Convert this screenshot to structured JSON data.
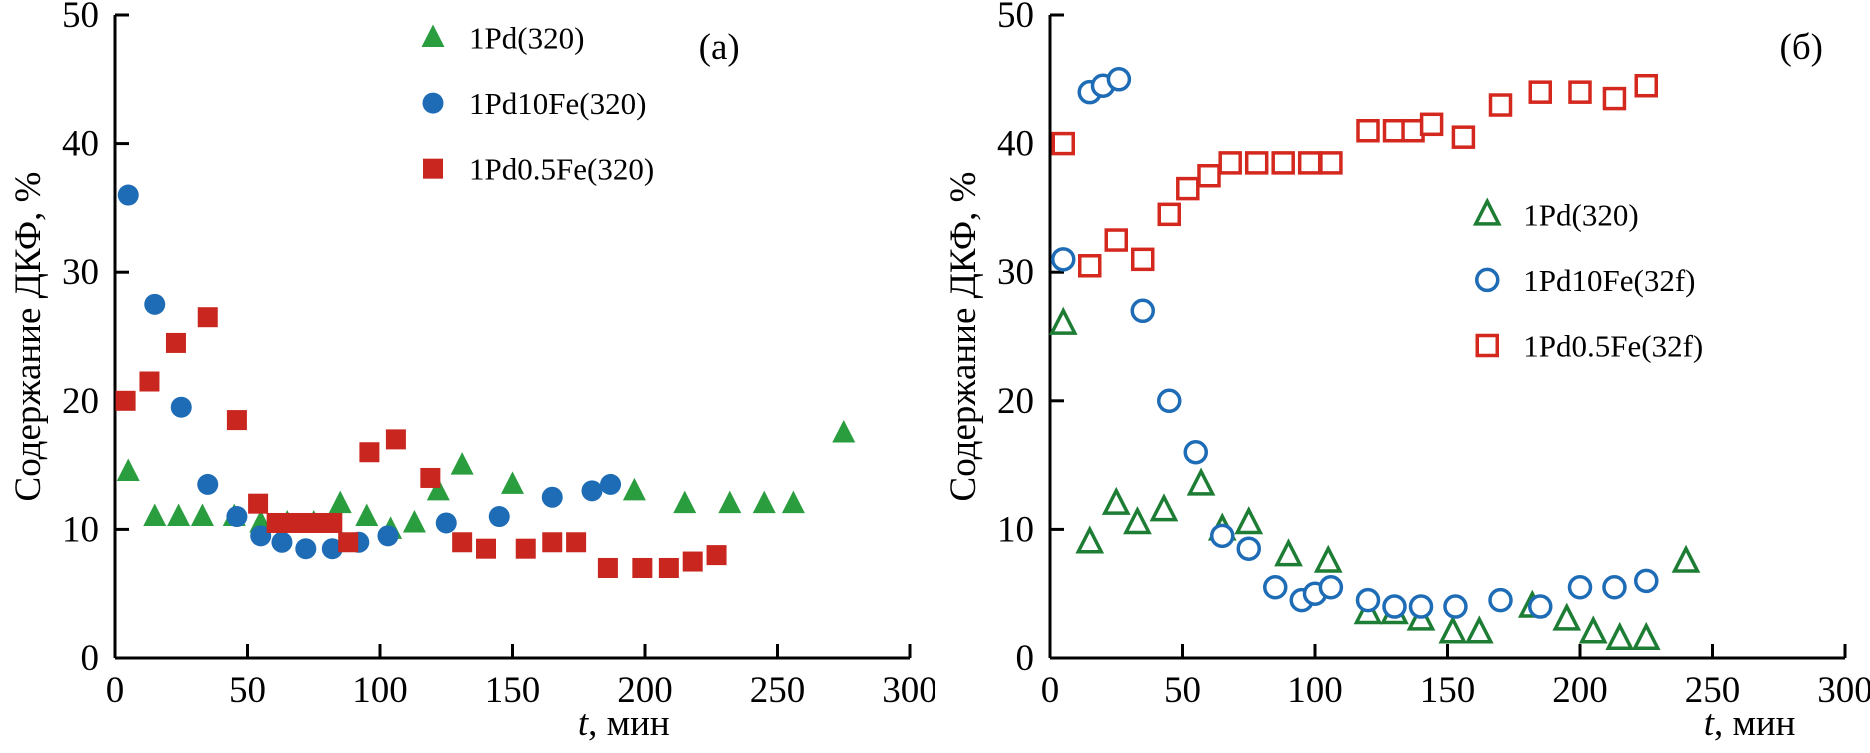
{
  "figure": {
    "background": "#ffffff",
    "axis_color": "#000000"
  },
  "chart_data": [
    {
      "type": "scatter",
      "panel_label": "(а)",
      "panel_label_fx": 0.76,
      "panel_label_fy": 0.05,
      "title": "",
      "xlabel_parts": [
        {
          "text": "t",
          "italic": true
        },
        {
          "text": ", мин",
          "italic": false
        }
      ],
      "xlabel_fx": 0.64,
      "ylabel": "Содержание ДКФ, %",
      "xlim": [
        0,
        300
      ],
      "ylim": [
        0,
        50
      ],
      "xticks": [
        0,
        50,
        100,
        150,
        200,
        250,
        300
      ],
      "yticks": [
        0,
        10,
        20,
        30,
        40,
        50
      ],
      "grid": false,
      "legend": {
        "fx": 0.4,
        "fy": 0.035,
        "row_step_fy": 0.102,
        "position": "inside-top-center"
      },
      "series": [
        {
          "name": "1Pd(320)",
          "marker": "triangle",
          "style": "filled",
          "color": "#2a9d3f",
          "points": [
            [
              5,
              14.5
            ],
            [
              15,
              11
            ],
            [
              24,
              11
            ],
            [
              33,
              11
            ],
            [
              45,
              11
            ],
            [
              55,
              10.5
            ],
            [
              65,
              10.5
            ],
            [
              75,
              10.5
            ],
            [
              85,
              12
            ],
            [
              95,
              11
            ],
            [
              104,
              10
            ],
            [
              113,
              10.5
            ],
            [
              122,
              13
            ],
            [
              131,
              15
            ],
            [
              150,
              13.5
            ],
            [
              196,
              13
            ],
            [
              215,
              12
            ],
            [
              232,
              12
            ],
            [
              245,
              12
            ],
            [
              256,
              12
            ],
            [
              275,
              17.5
            ]
          ]
        },
        {
          "name": "1Pd10Fe(320)",
          "marker": "circle",
          "style": "filled",
          "color": "#1d6cb5",
          "points": [
            [
              5,
              36
            ],
            [
              15,
              27.5
            ],
            [
              25,
              19.5
            ],
            [
              35,
              13.5
            ],
            [
              46,
              11
            ],
            [
              55,
              9.5
            ],
            [
              63,
              9
            ],
            [
              72,
              8.5
            ],
            [
              82,
              8.5
            ],
            [
              92,
              9
            ],
            [
              103,
              9.5
            ],
            [
              125,
              10.5
            ],
            [
              145,
              11
            ],
            [
              165,
              12.5
            ],
            [
              180,
              13
            ],
            [
              187,
              13.5
            ]
          ]
        },
        {
          "name": "1Pd0.5Fe(320)",
          "marker": "square",
          "style": "filled",
          "color": "#c8261f",
          "points": [
            [
              4,
              20
            ],
            [
              13,
              21.5
            ],
            [
              23,
              24.5
            ],
            [
              35,
              26.5
            ],
            [
              46,
              18.5
            ],
            [
              54,
              12
            ],
            [
              61,
              10.5
            ],
            [
              68,
              10.5
            ],
            [
              75,
              10.5
            ],
            [
              82,
              10.5
            ],
            [
              88,
              9
            ],
            [
              96,
              16
            ],
            [
              106,
              17
            ],
            [
              119,
              14
            ],
            [
              131,
              9
            ],
            [
              140,
              8.5
            ],
            [
              155,
              8.5
            ],
            [
              165,
              9
            ],
            [
              174,
              9
            ],
            [
              186,
              7
            ],
            [
              199,
              7
            ],
            [
              209,
              7
            ],
            [
              218,
              7.5
            ],
            [
              227,
              8
            ]
          ]
        }
      ]
    },
    {
      "type": "scatter",
      "panel_label": "(б)",
      "panel_label_fx": 0.945,
      "panel_label_fy": 0.05,
      "title": "",
      "xlabel_parts": [
        {
          "text": "t",
          "italic": true
        },
        {
          "text": ", мин",
          "italic": false
        }
      ],
      "xlabel_fx": 0.88,
      "ylabel": "Содержание ДКФ, %",
      "xlim": [
        0,
        300
      ],
      "ylim": [
        0,
        50
      ],
      "xticks": [
        0,
        50,
        100,
        150,
        200,
        250,
        300
      ],
      "yticks": [
        0,
        10,
        20,
        30,
        40,
        50
      ],
      "grid": false,
      "legend": {
        "fx": 0.55,
        "fy": 0.31,
        "row_step_fy": 0.102,
        "position": "inside-middle-right"
      },
      "series": [
        {
          "name": "1Pd(320)",
          "marker": "triangle",
          "style": "open",
          "color": "#1e7d34",
          "points": [
            [
              5,
              26
            ],
            [
              15,
              9
            ],
            [
              25,
              12
            ],
            [
              33,
              10.5
            ],
            [
              43,
              11.5
            ],
            [
              57,
              13.5
            ],
            [
              65,
              10
            ],
            [
              75,
              10.5
            ],
            [
              90,
              8
            ],
            [
              105,
              7.5
            ],
            [
              120,
              3.5
            ],
            [
              130,
              3.5
            ],
            [
              140,
              3
            ],
            [
              152,
              2
            ],
            [
              162,
              2
            ],
            [
              182,
              4
            ],
            [
              195,
              3
            ],
            [
              205,
              2
            ],
            [
              215,
              1.5
            ],
            [
              225,
              1.5
            ],
            [
              240,
              7.5
            ]
          ]
        },
        {
          "name": "1Pd10Fe(32f)",
          "marker": "circle",
          "style": "open",
          "color": "#1d6cb5",
          "points": [
            [
              5,
              31
            ],
            [
              15,
              44
            ],
            [
              20,
              44.5
            ],
            [
              26,
              45
            ],
            [
              35,
              27
            ],
            [
              45,
              20
            ],
            [
              55,
              16
            ],
            [
              65,
              9.5
            ],
            [
              75,
              8.5
            ],
            [
              85,
              5.5
            ],
            [
              95,
              4.5
            ],
            [
              100,
              5
            ],
            [
              106,
              5.5
            ],
            [
              120,
              4.5
            ],
            [
              130,
              4
            ],
            [
              140,
              4
            ],
            [
              153,
              4
            ],
            [
              170,
              4.5
            ],
            [
              185,
              4
            ],
            [
              200,
              5.5
            ],
            [
              213,
              5.5
            ],
            [
              225,
              6
            ]
          ]
        },
        {
          "name": "1Pd0.5Fe(32f)",
          "marker": "square",
          "style": "open",
          "color": "#d4281e",
          "points": [
            [
              5,
              40
            ],
            [
              15,
              30.5
            ],
            [
              25,
              32.5
            ],
            [
              35,
              31
            ],
            [
              45,
              34.5
            ],
            [
              52,
              36.5
            ],
            [
              60,
              37.5
            ],
            [
              68,
              38.5
            ],
            [
              78,
              38.5
            ],
            [
              88,
              38.5
            ],
            [
              98,
              38.5
            ],
            [
              106,
              38.5
            ],
            [
              120,
              41
            ],
            [
              130,
              41
            ],
            [
              137,
              41
            ],
            [
              144,
              41.5
            ],
            [
              156,
              40.5
            ],
            [
              170,
              43
            ],
            [
              185,
              44
            ],
            [
              200,
              44
            ],
            [
              213,
              43.5
            ],
            [
              225,
              44.5
            ]
          ]
        }
      ]
    }
  ]
}
